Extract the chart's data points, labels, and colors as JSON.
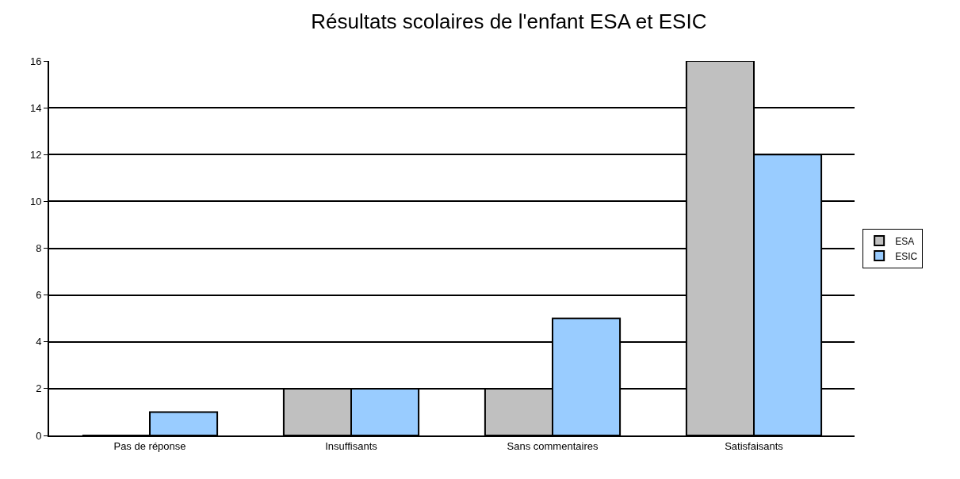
{
  "chart_data": {
    "type": "bar",
    "title": "Résultats scolaires de l'enfant ESA et ESIC",
    "categories": [
      "Pas de réponse",
      "Insuffisants",
      "Sans commentaires",
      "Satisfaisants"
    ],
    "series": [
      {
        "name": "ESA",
        "color": "#c0c0c0",
        "values": [
          0,
          2,
          2,
          16
        ]
      },
      {
        "name": "ESIC",
        "color": "#99ccff",
        "values": [
          1,
          2,
          5,
          12
        ]
      }
    ],
    "ylim": [
      0,
      16
    ],
    "yticks": [
      0,
      2,
      4,
      6,
      8,
      10,
      12,
      14,
      16
    ],
    "grid": "y",
    "legend": "right"
  }
}
